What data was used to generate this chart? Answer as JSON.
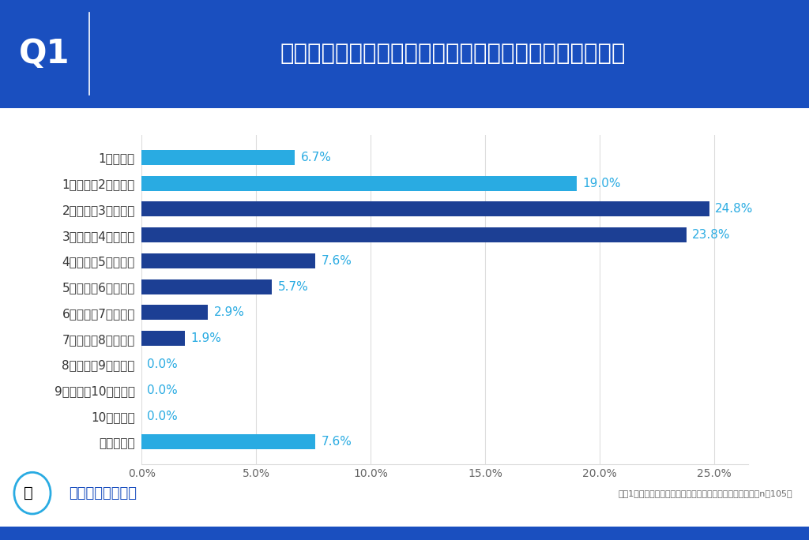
{
  "categories": [
    "1万円未満",
    "1万円以上2万円未満",
    "2万円以上3万円未満",
    "3万円以上4万円未満",
    "4万円以上5万円未満",
    "5万円以上6万円未満",
    "6万円以上7万円未満",
    "7万円以上8万円未満",
    "8万円以上9万円未満",
    "9万円以上10万円未満",
    "10万円以上",
    "わからない"
  ],
  "values": [
    6.7,
    19.0,
    24.8,
    23.8,
    7.6,
    5.7,
    2.9,
    1.9,
    0.0,
    0.0,
    0.0,
    7.6
  ],
  "bar_colors": [
    "#29ABE2",
    "#29ABE2",
    "#1C3F94",
    "#1C3F94",
    "#1C3F94",
    "#1C3F94",
    "#1C3F94",
    "#1C3F94",
    "#1C3F94",
    "#1C3F94",
    "#1C3F94",
    "#29ABE2"
  ],
  "header_bg_color": "#1A4FBF",
  "chart_bg_color": "#FFFFFF",
  "outer_bg_color": "#1A4FBF",
  "white_bg_color": "#FFFFFF",
  "q1_text": "Q1",
  "title_text": "現在通っている塾や予備校の月額費用はいくらですか？",
  "footer_note": "高校1年生の子どもが塾または予備校に通っていた保護者（n＝105）",
  "logo_text": "じゅけラボ予備校",
  "xlim_max": 26.5,
  "xticks": [
    0,
    5,
    10,
    15,
    20,
    25
  ],
  "xtick_labels": [
    "0.0%",
    "5.0%",
    "10.0%",
    "15.0%",
    "20.0%",
    "25.0%"
  ],
  "grid_color": "#DDDDDD",
  "tick_label_color": "#666666",
  "bar_label_color": "#29ABE2",
  "category_label_color": "#333333",
  "bar_label_fontsize": 11,
  "category_fontsize": 11,
  "header_title_fontsize": 21,
  "q1_fontsize": 30,
  "logo_fontsize": 13,
  "footer_note_fontsize": 8
}
